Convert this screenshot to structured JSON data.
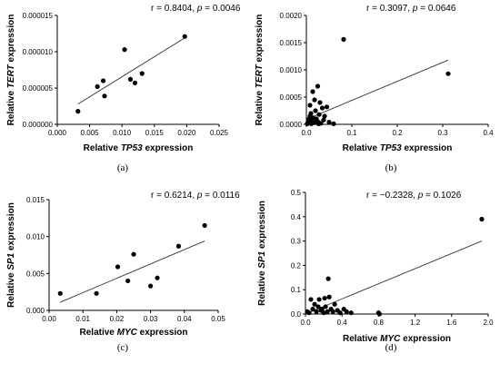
{
  "chart_data": [
    {
      "type": "scatter",
      "panel_label": "(a)",
      "stat": {
        "r_prefix": "r = ",
        "r_value": "0.8404",
        "sep": ", ",
        "p_symbol": "p",
        "p_value": " = 0.0046"
      },
      "xlabel": {
        "pre": "Relative ",
        "gene": "TP53",
        "post": " expression"
      },
      "ylabel": {
        "pre": "Relative ",
        "gene": "TERT",
        "post": " expression"
      },
      "xlim": [
        0,
        0.025
      ],
      "ylim": [
        0,
        1.5e-05
      ],
      "xticks": [
        0,
        0.005,
        0.01,
        0.015,
        0.02,
        0.025
      ],
      "xtick_labels": [
        "0.000",
        "0.005",
        "0.010",
        "0.015",
        "0.020",
        "0.025"
      ],
      "yticks": [
        0,
        5e-06,
        1e-05,
        1.5e-05
      ],
      "ytick_labels": [
        "0.000000",
        "0.000005",
        "0.000010",
        "0.000015"
      ],
      "points": [
        {
          "x": 0.0032,
          "y": 1.8e-06
        },
        {
          "x": 0.0062,
          "y": 5.2e-06
        },
        {
          "x": 0.0071,
          "y": 6e-06
        },
        {
          "x": 0.0073,
          "y": 3.9e-06
        },
        {
          "x": 0.0104,
          "y": 1.03e-05
        },
        {
          "x": 0.0113,
          "y": 6.2e-06
        },
        {
          "x": 0.012,
          "y": 5.7e-06
        },
        {
          "x": 0.0131,
          "y": 7e-06
        },
        {
          "x": 0.0197,
          "y": 1.21e-05
        }
      ],
      "fit": [
        [
          0.0032,
          2.8e-06
        ],
        [
          0.0197,
          1.19e-05
        ]
      ]
    },
    {
      "type": "scatter",
      "panel_label": "(b)",
      "stat": {
        "r_prefix": "r = ",
        "r_value": "0.3097",
        "sep": ", ",
        "p_symbol": "p",
        "p_value": " = 0.0646"
      },
      "xlabel": {
        "pre": "Relative ",
        "gene": "TP53",
        "post": " expression"
      },
      "ylabel": {
        "pre": "Relative ",
        "gene": "TERT",
        "post": " expression"
      },
      "xlim": [
        0,
        0.4
      ],
      "ylim": [
        0,
        0.002
      ],
      "xticks": [
        0,
        0.1,
        0.2,
        0.3,
        0.4
      ],
      "xtick_labels": [
        "0.0",
        "0.1",
        "0.2",
        "0.3",
        "0.4"
      ],
      "yticks": [
        0,
        0.0005,
        0.001,
        0.0015,
        0.002
      ],
      "ytick_labels": [
        "0.0000",
        "0.0005",
        "0.0010",
        "0.0015",
        "0.0020"
      ],
      "points": [
        {
          "x": 0.003,
          "y": 2e-05
        },
        {
          "x": 0.005,
          "y": 5e-05
        },
        {
          "x": 0.006,
          "y": 0.0001
        },
        {
          "x": 0.008,
          "y": 0.00015
        },
        {
          "x": 0.01,
          "y": 0.0002
        },
        {
          "x": 0.004,
          "y": 3e-05
        },
        {
          "x": 0.012,
          "y": 8e-05
        },
        {
          "x": 0.015,
          "y": 0.00012
        },
        {
          "x": 0.018,
          "y": 3e-05
        },
        {
          "x": 0.02,
          "y": 0.00025
        },
        {
          "x": 0.022,
          "y": 0.0001
        },
        {
          "x": 0.025,
          "y": 5e-05
        },
        {
          "x": 0.028,
          "y": 0.00018
        },
        {
          "x": 0.03,
          "y": 0.0004
        },
        {
          "x": 0.032,
          "y": 2e-05
        },
        {
          "x": 0.035,
          "y": 0.0003
        },
        {
          "x": 0.038,
          "y": 8e-05
        },
        {
          "x": 0.04,
          "y": 0.00015
        },
        {
          "x": 0.045,
          "y": 0.00032
        },
        {
          "x": 0.05,
          "y": 4e-05
        },
        {
          "x": 0.014,
          "y": 0.0006
        },
        {
          "x": 0.025,
          "y": 0.0007
        },
        {
          "x": 0.008,
          "y": 0.00035
        },
        {
          "x": 0.018,
          "y": 0.00045
        },
        {
          "x": 0.002,
          "y": 1e-05
        },
        {
          "x": 0.011,
          "y": 1e-05
        },
        {
          "x": 0.027,
          "y": 1e-05
        },
        {
          "x": 0.06,
          "y": 1e-05
        },
        {
          "x": 0.082,
          "y": 0.00156
        },
        {
          "x": 0.312,
          "y": 0.00093
        }
      ],
      "fit": [
        [
          0.0,
          9e-05
        ],
        [
          0.312,
          0.00118
        ]
      ]
    },
    {
      "type": "scatter",
      "panel_label": "(c)",
      "stat": {
        "r_prefix": "r = ",
        "r_value": "0.6214",
        "sep": ", ",
        "p_symbol": "p",
        "p_value": " = 0.0116"
      },
      "xlabel": {
        "pre": "Relative ",
        "gene": "MYC",
        "post": " expression"
      },
      "ylabel": {
        "pre": "Relative ",
        "gene": "SP1",
        "post": " expression"
      },
      "xlim": [
        0,
        0.05
      ],
      "ylim": [
        0,
        0.015
      ],
      "xticks": [
        0,
        0.01,
        0.02,
        0.03,
        0.04,
        0.05
      ],
      "xtick_labels": [
        "0.00",
        "0.01",
        "0.02",
        "0.03",
        "0.04",
        "0.05"
      ],
      "yticks": [
        0,
        0.005,
        0.01,
        0.015
      ],
      "ytick_labels": [
        "0.000",
        "0.005",
        "0.010",
        "0.015"
      ],
      "points": [
        {
          "x": 0.0033,
          "y": 0.0023
        },
        {
          "x": 0.014,
          "y": 0.0023
        },
        {
          "x": 0.0203,
          "y": 0.0059
        },
        {
          "x": 0.0233,
          "y": 0.004
        },
        {
          "x": 0.025,
          "y": 0.0076
        },
        {
          "x": 0.03,
          "y": 0.0033
        },
        {
          "x": 0.032,
          "y": 0.0044
        },
        {
          "x": 0.0383,
          "y": 0.0087
        },
        {
          "x": 0.046,
          "y": 0.0115
        }
      ],
      "fit": [
        [
          0.0033,
          0.0011
        ],
        [
          0.046,
          0.0094
        ]
      ]
    },
    {
      "type": "scatter",
      "panel_label": "(d)",
      "stat": {
        "r_prefix": "r = −0.2328",
        "r_value": "",
        "sep": ", ",
        "p_symbol": "p",
        "p_value": " = 0.1026"
      },
      "xlabel": {
        "pre": "Relative ",
        "gene": "MYC",
        "post": " expression"
      },
      "ylabel": {
        "pre": "Relative ",
        "gene": "SP1",
        "post": " expression"
      },
      "xlim": [
        0,
        2.0
      ],
      "ylim": [
        0,
        0.5
      ],
      "xticks": [
        0,
        0.4,
        0.8,
        1.2,
        1.6,
        2.0
      ],
      "xtick_labels": [
        "0.0",
        "0.4",
        "0.8",
        "1.2",
        "1.6",
        "2.0"
      ],
      "yticks": [
        0,
        0.1,
        0.2,
        0.3,
        0.4,
        0.5
      ],
      "ytick_labels": [
        "0.0",
        "0.1",
        "0.2",
        "0.3",
        "0.4",
        "0.5"
      ],
      "points": [
        {
          "x": 0.02,
          "y": 0.01
        },
        {
          "x": 0.04,
          "y": 0.005
        },
        {
          "x": 0.06,
          "y": 0.06
        },
        {
          "x": 0.08,
          "y": 0.02
        },
        {
          "x": 0.1,
          "y": 0.04
        },
        {
          "x": 0.12,
          "y": 0.01
        },
        {
          "x": 0.14,
          "y": 0.03
        },
        {
          "x": 0.15,
          "y": 0.06
        },
        {
          "x": 0.17,
          "y": 0.015
        },
        {
          "x": 0.18,
          "y": 0.02
        },
        {
          "x": 0.2,
          "y": 0.005
        },
        {
          "x": 0.21,
          "y": 0.065
        },
        {
          "x": 0.22,
          "y": 0.03
        },
        {
          "x": 0.24,
          "y": 0.01
        },
        {
          "x": 0.25,
          "y": 0.145
        },
        {
          "x": 0.26,
          "y": 0.07
        },
        {
          "x": 0.28,
          "y": 0.02
        },
        {
          "x": 0.3,
          "y": 0.01
        },
        {
          "x": 0.32,
          "y": 0.04
        },
        {
          "x": 0.35,
          "y": 0.015
        },
        {
          "x": 0.38,
          "y": 0.005
        },
        {
          "x": 0.42,
          "y": 0.02
        },
        {
          "x": 0.45,
          "y": 0.01
        },
        {
          "x": 0.5,
          "y": 0.005
        },
        {
          "x": 0.8,
          "y": 0.005
        },
        {
          "x": 0.81,
          "y": 0.0
        },
        {
          "x": 1.93,
          "y": 0.39
        }
      ],
      "fit": [
        [
          0.0,
          0.0
        ],
        [
          1.93,
          0.3
        ]
      ]
    }
  ]
}
